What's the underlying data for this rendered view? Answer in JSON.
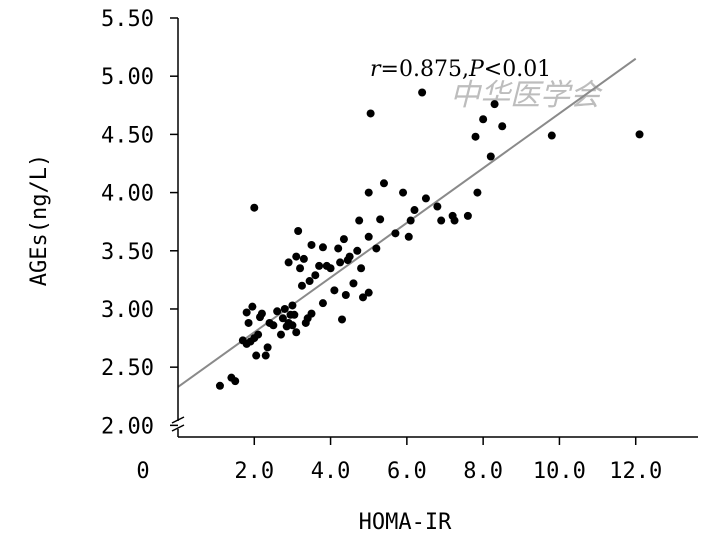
{
  "chart_data": {
    "type": "scatter",
    "title": "",
    "xlabel": "HOMA-IR",
    "ylabel": "AGEs(ng/L)",
    "xlim": [
      0,
      14
    ],
    "ylim": [
      1.9,
      5.5
    ],
    "x_ticks": [
      {
        "value": 0,
        "label": "0"
      },
      {
        "value": 2,
        "label": "2.0"
      },
      {
        "value": 4,
        "label": "4.0"
      },
      {
        "value": 6,
        "label": "6.0"
      },
      {
        "value": 8,
        "label": "8.0"
      },
      {
        "value": 10,
        "label": "10.0"
      },
      {
        "value": 12,
        "label": "12.0"
      }
    ],
    "y_ticks": [
      {
        "value": 2.0,
        "label": "2.00"
      },
      {
        "value": 2.5,
        "label": "2.50"
      },
      {
        "value": 3.0,
        "label": "3.00"
      },
      {
        "value": 3.5,
        "label": "3.50"
      },
      {
        "value": 4.0,
        "label": "4.00"
      },
      {
        "value": 4.5,
        "label": "4.50"
      },
      {
        "value": 5.0,
        "label": "5.00"
      },
      {
        "value": 5.5,
        "label": "5.50"
      }
    ],
    "axis_break": "y-axis near 1.9",
    "annotation": {
      "r_symbol": "r",
      "r_text": "=0.875,",
      "p_symbol": "P",
      "p_text": "<0.01"
    },
    "watermark": "中华医学会",
    "regression": {
      "x1": 0,
      "y1": 2.33,
      "x2": 12.0,
      "y2": 5.15
    },
    "points": [
      [
        1.1,
        2.34
      ],
      [
        1.4,
        2.41
      ],
      [
        1.5,
        2.38
      ],
      [
        1.7,
        2.73
      ],
      [
        1.8,
        2.7
      ],
      [
        1.8,
        2.97
      ],
      [
        1.85,
        2.88
      ],
      [
        1.9,
        2.72
      ],
      [
        1.95,
        3.02
      ],
      [
        2.0,
        2.75
      ],
      [
        2.0,
        3.87
      ],
      [
        2.05,
        2.6
      ],
      [
        2.1,
        2.78
      ],
      [
        2.15,
        2.93
      ],
      [
        2.2,
        2.96
      ],
      [
        2.3,
        2.6
      ],
      [
        2.35,
        2.67
      ],
      [
        2.4,
        2.88
      ],
      [
        2.5,
        2.86
      ],
      [
        2.6,
        2.98
      ],
      [
        2.7,
        2.78
      ],
      [
        2.75,
        2.92
      ],
      [
        2.8,
        3.0
      ],
      [
        2.85,
        2.85
      ],
      [
        2.9,
        2.88
      ],
      [
        2.9,
        3.4
      ],
      [
        2.95,
        2.95
      ],
      [
        3.0,
        3.03
      ],
      [
        3.0,
        2.86
      ],
      [
        3.05,
        2.95
      ],
      [
        3.1,
        2.8
      ],
      [
        3.1,
        3.45
      ],
      [
        3.15,
        3.67
      ],
      [
        3.2,
        3.35
      ],
      [
        3.25,
        3.2
      ],
      [
        3.3,
        3.43
      ],
      [
        3.35,
        2.88
      ],
      [
        3.4,
        2.92
      ],
      [
        3.45,
        3.24
      ],
      [
        3.5,
        3.55
      ],
      [
        3.5,
        2.96
      ],
      [
        3.6,
        3.29
      ],
      [
        3.7,
        3.37
      ],
      [
        3.8,
        3.53
      ],
      [
        3.8,
        3.05
      ],
      [
        3.9,
        3.37
      ],
      [
        4.0,
        3.35
      ],
      [
        4.1,
        3.16
      ],
      [
        4.2,
        3.52
      ],
      [
        4.25,
        3.4
      ],
      [
        4.3,
        2.91
      ],
      [
        4.35,
        3.6
      ],
      [
        4.4,
        3.12
      ],
      [
        4.45,
        3.42
      ],
      [
        4.5,
        3.45
      ],
      [
        4.6,
        3.22
      ],
      [
        4.7,
        3.5
      ],
      [
        4.75,
        3.76
      ],
      [
        4.8,
        3.35
      ],
      [
        4.85,
        3.1
      ],
      [
        5.0,
        3.14
      ],
      [
        5.0,
        3.62
      ],
      [
        5.0,
        4.0
      ],
      [
        5.05,
        4.68
      ],
      [
        5.2,
        3.52
      ],
      [
        5.3,
        3.77
      ],
      [
        5.4,
        4.08
      ],
      [
        5.7,
        3.65
      ],
      [
        5.9,
        4.0
      ],
      [
        6.05,
        3.62
      ],
      [
        6.1,
        3.76
      ],
      [
        6.2,
        3.85
      ],
      [
        6.4,
        4.86
      ],
      [
        6.5,
        3.95
      ],
      [
        6.8,
        3.88
      ],
      [
        6.9,
        3.76
      ],
      [
        7.2,
        3.8
      ],
      [
        7.25,
        3.76
      ],
      [
        7.6,
        3.8
      ],
      [
        7.8,
        4.48
      ],
      [
        7.85,
        4.0
      ],
      [
        8.0,
        4.63
      ],
      [
        8.2,
        4.31
      ],
      [
        8.3,
        4.76
      ],
      [
        8.5,
        4.57
      ],
      [
        9.8,
        4.49
      ],
      [
        12.1,
        4.5
      ]
    ]
  }
}
